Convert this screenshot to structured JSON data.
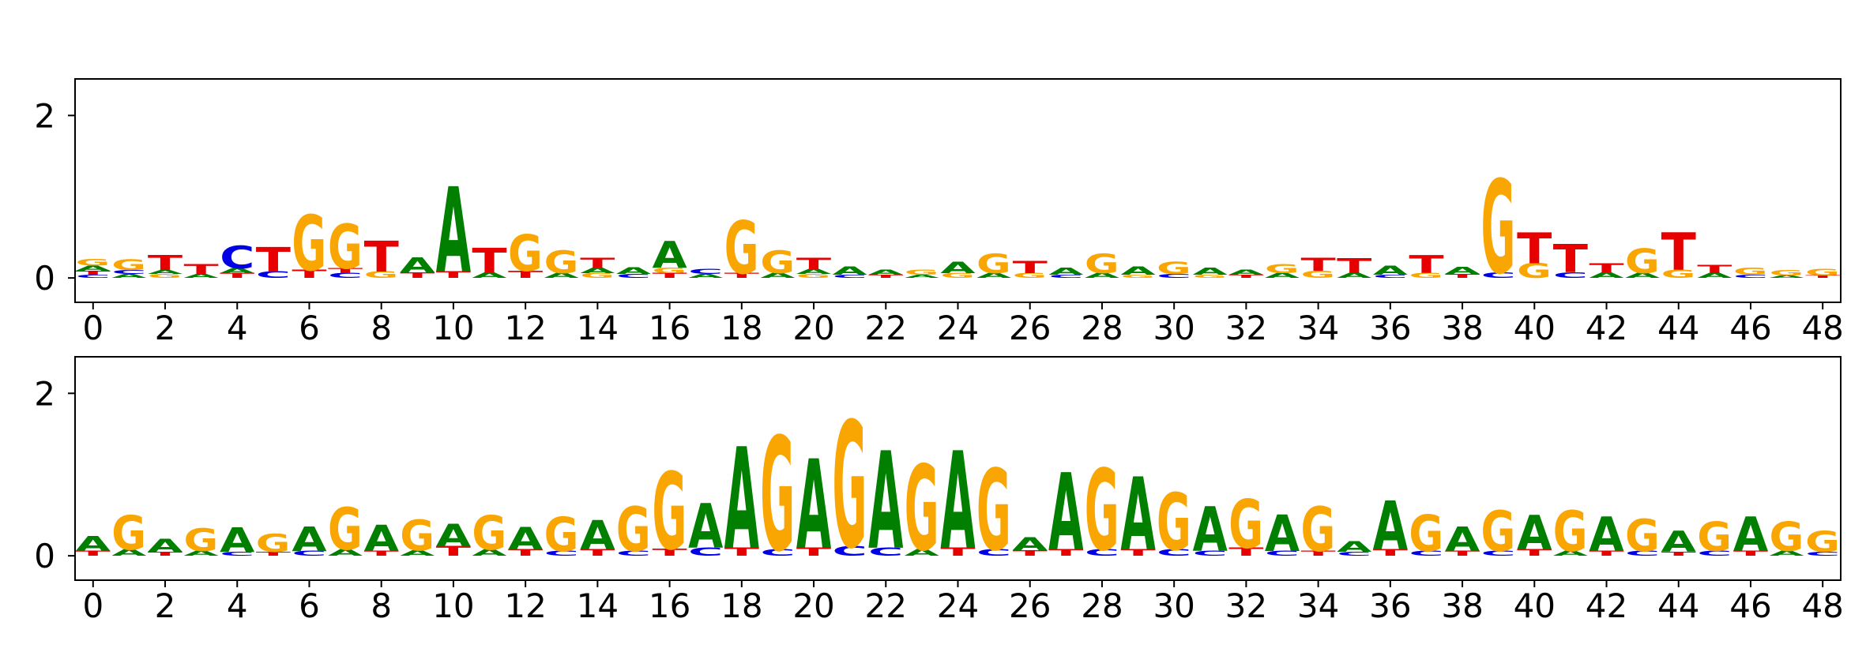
{
  "figure": {
    "background": "#ffffff",
    "description": "Two stacked DNA sequence-logo subplots (information content in bits per position)"
  },
  "style": {
    "axis_color": "#000000",
    "tick_label_color": "#000000",
    "letter_colors": {
      "A": "#007f00",
      "C": "#0000e6",
      "G": "#f9a602",
      "T": "#e60000"
    }
  },
  "chart_data": [
    {
      "type": "sequence_logo",
      "panel": "top",
      "title": "",
      "xlabel": "",
      "ylabel": "",
      "alphabet": [
        "A",
        "C",
        "G",
        "T"
      ],
      "xlim": [
        -0.5,
        48.5
      ],
      "ylim": [
        -0.3,
        2.45
      ],
      "x_ticks": [
        0,
        2,
        4,
        6,
        8,
        10,
        12,
        14,
        16,
        18,
        20,
        22,
        24,
        26,
        28,
        30,
        32,
        34,
        36,
        38,
        40,
        42,
        44,
        46,
        48
      ],
      "y_ticks": [
        0,
        2
      ],
      "stacks": [
        [
          [
            "C",
            0.04
          ],
          [
            "T",
            0.05
          ],
          [
            "A",
            0.06
          ],
          [
            "G",
            0.08
          ]
        ],
        [
          [
            "A",
            0.05
          ],
          [
            "C",
            0.05
          ],
          [
            "G",
            0.13
          ]
        ],
        [
          [
            "G",
            0.05
          ],
          [
            "A",
            0.05
          ],
          [
            "T",
            0.18
          ]
        ],
        [
          [
            "A",
            0.05
          ],
          [
            "T",
            0.12
          ]
        ],
        [
          [
            "T",
            0.06
          ],
          [
            "A",
            0.06
          ],
          [
            "C",
            0.28
          ]
        ],
        [
          [
            "C",
            0.08
          ],
          [
            "T",
            0.3
          ]
        ],
        [
          [
            "T",
            0.1
          ],
          [
            "G",
            0.68
          ]
        ],
        [
          [
            "C",
            0.06
          ],
          [
            "T",
            0.06
          ],
          [
            "G",
            0.55
          ]
        ],
        [
          [
            "G",
            0.08
          ],
          [
            "T",
            0.38
          ]
        ],
        [
          [
            "T",
            0.07
          ],
          [
            "A",
            0.18
          ]
        ],
        [
          [
            "T",
            0.08
          ],
          [
            "A",
            1.05
          ]
        ],
        [
          [
            "A",
            0.07
          ],
          [
            "T",
            0.3
          ]
        ],
        [
          [
            "T",
            0.09
          ],
          [
            "G",
            0.45
          ]
        ],
        [
          [
            "A",
            0.06
          ],
          [
            "G",
            0.28
          ]
        ],
        [
          [
            "G",
            0.06
          ],
          [
            "A",
            0.07
          ],
          [
            "T",
            0.12
          ]
        ],
        [
          [
            "C",
            0.05
          ],
          [
            "A",
            0.08
          ]
        ],
        [
          [
            "T",
            0.06
          ],
          [
            "G",
            0.07
          ],
          [
            "A",
            0.33
          ]
        ],
        [
          [
            "A",
            0.05
          ],
          [
            "C",
            0.06
          ]
        ],
        [
          [
            "T",
            0.06
          ],
          [
            "G",
            0.65
          ]
        ],
        [
          [
            "A",
            0.06
          ],
          [
            "G",
            0.28
          ]
        ],
        [
          [
            "G",
            0.05
          ],
          [
            "A",
            0.06
          ],
          [
            "T",
            0.14
          ]
        ],
        [
          [
            "C",
            0.04
          ],
          [
            "A",
            0.1
          ]
        ],
        [
          [
            "T",
            0.04
          ],
          [
            "A",
            0.06
          ]
        ],
        [
          [
            "A",
            0.04
          ],
          [
            "G",
            0.06
          ]
        ],
        [
          [
            "G",
            0.06
          ],
          [
            "A",
            0.14
          ]
        ],
        [
          [
            "A",
            0.06
          ],
          [
            "G",
            0.24
          ]
        ],
        [
          [
            "G",
            0.06
          ],
          [
            "T",
            0.15
          ]
        ],
        [
          [
            "C",
            0.04
          ],
          [
            "A",
            0.09
          ]
        ],
        [
          [
            "A",
            0.06
          ],
          [
            "G",
            0.24
          ]
        ],
        [
          [
            "G",
            0.04
          ],
          [
            "A",
            0.1
          ]
        ],
        [
          [
            "C",
            0.05
          ],
          [
            "G",
            0.15
          ]
        ],
        [
          [
            "G",
            0.04
          ],
          [
            "A",
            0.09
          ]
        ],
        [
          [
            "T",
            0.04
          ],
          [
            "A",
            0.06
          ]
        ],
        [
          [
            "A",
            0.06
          ],
          [
            "G",
            0.11
          ]
        ],
        [
          [
            "G",
            0.09
          ],
          [
            "T",
            0.16
          ]
        ],
        [
          [
            "A",
            0.06
          ],
          [
            "T",
            0.18
          ]
        ],
        [
          [
            "C",
            0.04
          ],
          [
            "A",
            0.11
          ]
        ],
        [
          [
            "G",
            0.06
          ],
          [
            "T",
            0.22
          ]
        ],
        [
          [
            "T",
            0.05
          ],
          [
            "A",
            0.09
          ]
        ],
        [
          [
            "C",
            0.07
          ],
          [
            "G",
            1.15
          ]
        ],
        [
          [
            "G",
            0.18
          ],
          [
            "T",
            0.38
          ]
        ],
        [
          [
            "C",
            0.07
          ],
          [
            "T",
            0.35
          ]
        ],
        [
          [
            "A",
            0.07
          ],
          [
            "T",
            0.11
          ]
        ],
        [
          [
            "A",
            0.06
          ],
          [
            "G",
            0.3
          ]
        ],
        [
          [
            "G",
            0.1
          ],
          [
            "T",
            0.46
          ]
        ],
        [
          [
            "A",
            0.06
          ],
          [
            "T",
            0.1
          ]
        ],
        [
          [
            "C",
            0.04
          ],
          [
            "G",
            0.09
          ]
        ],
        [
          [
            "A",
            0.03
          ],
          [
            "G",
            0.07
          ]
        ],
        [
          [
            "T",
            0.03
          ],
          [
            "G",
            0.08
          ]
        ]
      ]
    },
    {
      "type": "sequence_logo",
      "panel": "bottom",
      "title": "",
      "xlabel": "",
      "ylabel": "",
      "alphabet": [
        "A",
        "C",
        "G",
        "T"
      ],
      "xlim": [
        -0.5,
        48.5
      ],
      "ylim": [
        -0.3,
        2.45
      ],
      "x_ticks": [
        0,
        2,
        4,
        6,
        8,
        10,
        12,
        14,
        16,
        18,
        20,
        22,
        24,
        26,
        28,
        30,
        32,
        34,
        36,
        38,
        40,
        42,
        44,
        46,
        48
      ],
      "y_ticks": [
        0,
        2
      ],
      "stacks": [
        [
          [
            "T",
            0.06
          ],
          [
            "A",
            0.18
          ]
        ],
        [
          [
            "A",
            0.08
          ],
          [
            "G",
            0.42
          ]
        ],
        [
          [
            "T",
            0.05
          ],
          [
            "A",
            0.16
          ]
        ],
        [
          [
            "A",
            0.06
          ],
          [
            "G",
            0.28
          ]
        ],
        [
          [
            "C",
            0.05
          ],
          [
            "A",
            0.3
          ]
        ],
        [
          [
            "T",
            0.05
          ],
          [
            "G",
            0.22
          ]
        ],
        [
          [
            "C",
            0.06
          ],
          [
            "A",
            0.3
          ]
        ],
        [
          [
            "A",
            0.08
          ],
          [
            "G",
            0.52
          ]
        ],
        [
          [
            "T",
            0.06
          ],
          [
            "A",
            0.32
          ]
        ],
        [
          [
            "A",
            0.07
          ],
          [
            "G",
            0.38
          ]
        ],
        [
          [
            "T",
            0.12
          ],
          [
            "A",
            0.28
          ]
        ],
        [
          [
            "A",
            0.08
          ],
          [
            "G",
            0.42
          ]
        ],
        [
          [
            "T",
            0.08
          ],
          [
            "A",
            0.28
          ]
        ],
        [
          [
            "C",
            0.06
          ],
          [
            "G",
            0.42
          ]
        ],
        [
          [
            "T",
            0.08
          ],
          [
            "A",
            0.36
          ]
        ],
        [
          [
            "C",
            0.06
          ],
          [
            "G",
            0.55
          ]
        ],
        [
          [
            "T",
            0.09
          ],
          [
            "G",
            0.95
          ]
        ],
        [
          [
            "C",
            0.1
          ],
          [
            "A",
            0.55
          ]
        ],
        [
          [
            "T",
            0.1
          ],
          [
            "A",
            1.25
          ]
        ],
        [
          [
            "C",
            0.08
          ],
          [
            "G",
            1.4
          ]
        ],
        [
          [
            "T",
            0.1
          ],
          [
            "A",
            1.1
          ]
        ],
        [
          [
            "C",
            0.12
          ],
          [
            "G",
            1.55
          ]
        ],
        [
          [
            "C",
            0.1
          ],
          [
            "A",
            1.2
          ]
        ],
        [
          [
            "A",
            0.08
          ],
          [
            "G",
            1.05
          ]
        ],
        [
          [
            "T",
            0.1
          ],
          [
            "A",
            1.2
          ]
        ],
        [
          [
            "C",
            0.08
          ],
          [
            "G",
            1.0
          ]
        ],
        [
          [
            "T",
            0.07
          ],
          [
            "A",
            0.16
          ]
        ],
        [
          [
            "T",
            0.08
          ],
          [
            "A",
            0.95
          ]
        ],
        [
          [
            "C",
            0.08
          ],
          [
            "G",
            1.0
          ]
        ],
        [
          [
            "T",
            0.08
          ],
          [
            "A",
            0.9
          ]
        ],
        [
          [
            "C",
            0.08
          ],
          [
            "G",
            0.7
          ]
        ],
        [
          [
            "C",
            0.06
          ],
          [
            "A",
            0.55
          ]
        ],
        [
          [
            "T",
            0.1
          ],
          [
            "G",
            0.6
          ]
        ],
        [
          [
            "C",
            0.06
          ],
          [
            "A",
            0.45
          ]
        ],
        [
          [
            "T",
            0.06
          ],
          [
            "G",
            0.55
          ]
        ],
        [
          [
            "C",
            0.05
          ],
          [
            "A",
            0.13
          ]
        ],
        [
          [
            "T",
            0.08
          ],
          [
            "A",
            0.6
          ]
        ],
        [
          [
            "C",
            0.06
          ],
          [
            "G",
            0.45
          ]
        ],
        [
          [
            "T",
            0.06
          ],
          [
            "A",
            0.3
          ]
        ],
        [
          [
            "C",
            0.06
          ],
          [
            "G",
            0.5
          ]
        ],
        [
          [
            "T",
            0.08
          ],
          [
            "A",
            0.42
          ]
        ],
        [
          [
            "A",
            0.06
          ],
          [
            "G",
            0.5
          ]
        ],
        [
          [
            "T",
            0.06
          ],
          [
            "A",
            0.42
          ]
        ],
        [
          [
            "C",
            0.06
          ],
          [
            "G",
            0.4
          ]
        ],
        [
          [
            "T",
            0.05
          ],
          [
            "A",
            0.26
          ]
        ],
        [
          [
            "C",
            0.06
          ],
          [
            "G",
            0.36
          ]
        ],
        [
          [
            "T",
            0.06
          ],
          [
            "A",
            0.42
          ]
        ],
        [
          [
            "A",
            0.06
          ],
          [
            "G",
            0.36
          ]
        ],
        [
          [
            "C",
            0.05
          ],
          [
            "G",
            0.26
          ]
        ]
      ]
    }
  ]
}
